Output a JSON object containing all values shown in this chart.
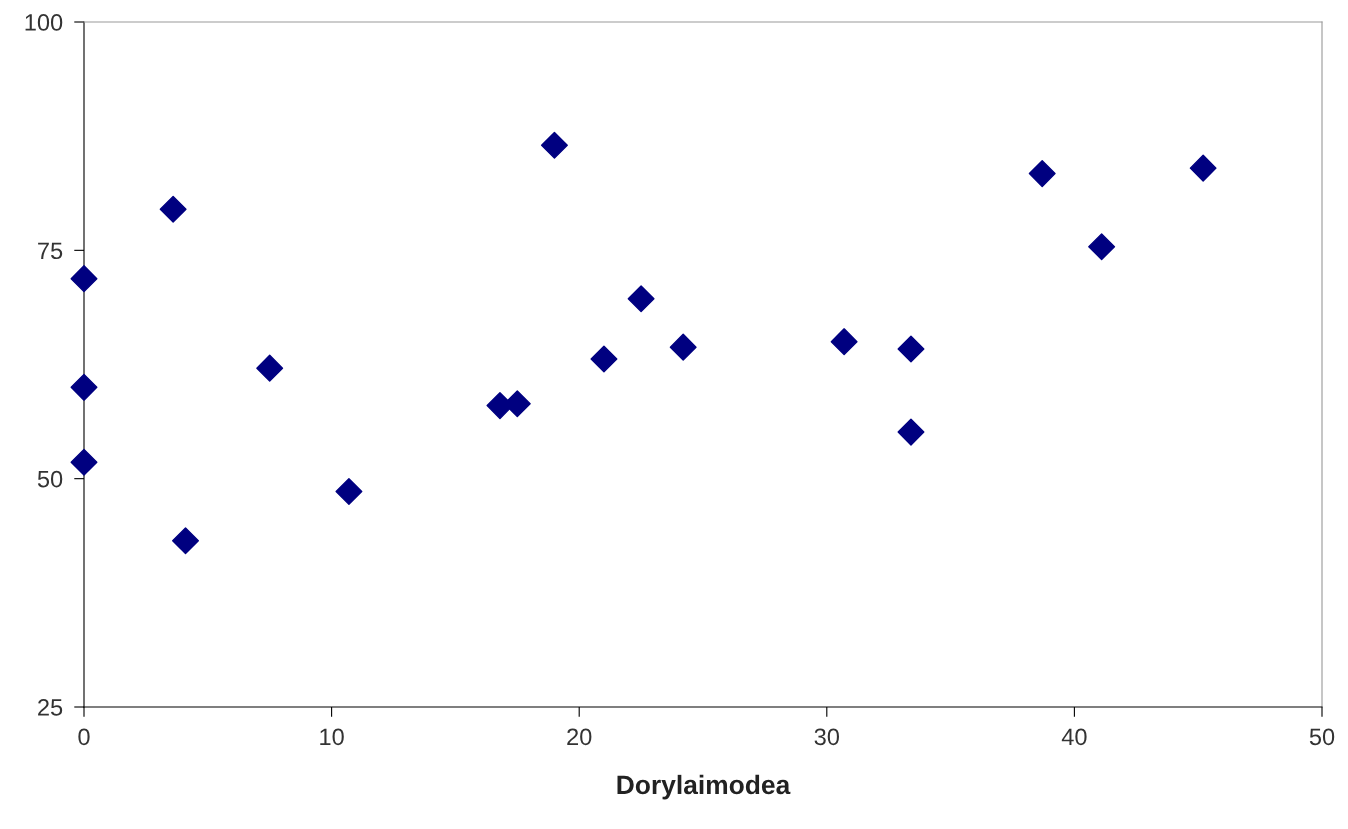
{
  "chart_data": {
    "type": "scatter",
    "xlabel": "Dorylaimodea",
    "x": [
      0,
      0,
      0,
      3.6,
      4.1,
      7.5,
      10.7,
      16.8,
      17.5,
      19.0,
      21.0,
      22.5,
      24.2,
      30.7,
      33.4,
      33.4,
      38.7,
      41.1,
      45.2
    ],
    "series": [
      {
        "color": "#000080",
        "values": [
          71.9,
          60.0,
          51.8,
          79.5,
          43.2,
          62.1,
          48.6,
          58.0,
          58.2,
          86.5,
          63.1,
          69.7,
          64.4,
          65.0,
          64.2,
          55.1,
          83.4,
          75.4,
          84.0
        ]
      }
    ],
    "xlim": [
      0,
      50
    ],
    "xticks": [
      0,
      10,
      20,
      30,
      40,
      50
    ],
    "ylim": [
      25,
      100
    ],
    "yticks": [
      25,
      50,
      75,
      100
    ],
    "marker": "diamond",
    "grid": false,
    "legend": false
  }
}
